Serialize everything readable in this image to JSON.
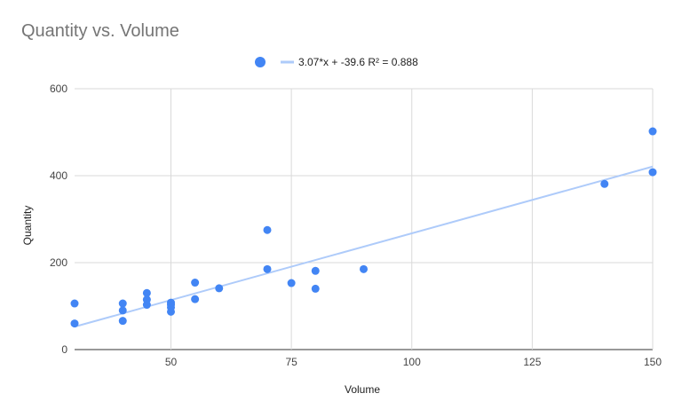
{
  "chart_data": {
    "type": "scatter",
    "title": "Quantity vs. Volume",
    "xlabel": "Volume",
    "ylabel": "Quantity",
    "xlim": [
      30,
      150
    ],
    "ylim": [
      0,
      600
    ],
    "x_ticks": [
      50,
      75,
      100,
      125,
      150
    ],
    "y_ticks": [
      0,
      200,
      400,
      600
    ],
    "grid": true,
    "legend_position": "top",
    "series": [
      {
        "color": "#4285f4",
        "points": [
          [
            30,
            106
          ],
          [
            30,
            60
          ],
          [
            40,
            106
          ],
          [
            40,
            90
          ],
          [
            40,
            66
          ],
          [
            45,
            130
          ],
          [
            45,
            115
          ],
          [
            45,
            103
          ],
          [
            50,
            108
          ],
          [
            50,
            103
          ],
          [
            50,
            97
          ],
          [
            50,
            87
          ],
          [
            55,
            154
          ],
          [
            55,
            116
          ],
          [
            60,
            141
          ],
          [
            70,
            275
          ],
          [
            70,
            185
          ],
          [
            75,
            153
          ],
          [
            80,
            181
          ],
          [
            80,
            140
          ],
          [
            90,
            185
          ],
          [
            140,
            381
          ],
          [
            150,
            502
          ],
          [
            150,
            408
          ]
        ]
      }
    ],
    "trendline": {
      "label": "3.07*x + -39.6 R² = 0.888",
      "slope": 3.07,
      "intercept": -39.6,
      "color": "#aecbfa"
    }
  }
}
